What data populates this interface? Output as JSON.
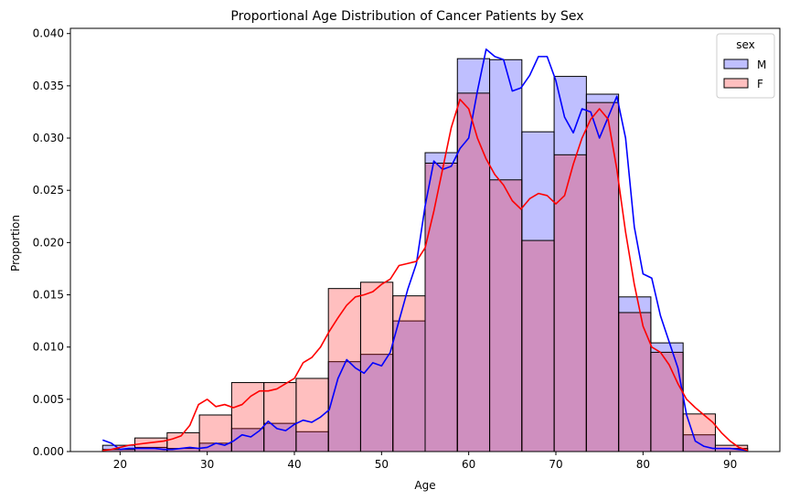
{
  "chart_data": {
    "type": "histogram",
    "title": "Proportional Age Distribution of Cancer Patients by Sex",
    "xlabel": "Age",
    "ylabel": "Proportion",
    "xlim": [
      14.3,
      95.7
    ],
    "ylim": [
      0,
      0.0405
    ],
    "xticks": [
      20,
      30,
      40,
      50,
      60,
      70,
      80,
      90
    ],
    "yticks": [
      0.0,
      0.005,
      0.01,
      0.015,
      0.02,
      0.025,
      0.03,
      0.035,
      0.04
    ],
    "ytick_labels": [
      "0.000",
      "0.005",
      "0.010",
      "0.015",
      "0.020",
      "0.025",
      "0.030",
      "0.035",
      "0.040"
    ],
    "bin_edges": [
      18,
      21.7,
      25.4,
      29.1,
      32.8,
      36.5,
      40.2,
      43.9,
      47.6,
      51.3,
      55.0,
      58.7,
      62.4,
      66.1,
      69.8,
      73.5,
      77.2,
      80.9,
      84.6,
      88.3,
      92.0
    ],
    "legend": {
      "title": "sex",
      "position": "top-right"
    },
    "series": [
      {
        "name": "M",
        "bar_color": "#0000ff",
        "bar_alpha": 0.25,
        "line_color": "#0000ff",
        "values": [
          0.0006,
          0.0004,
          0.0003,
          0.0008,
          0.0022,
          0.0027,
          0.0019,
          0.0086,
          0.0093,
          0.0125,
          0.0286,
          0.0376,
          0.0375,
          0.0306,
          0.0359,
          0.0342,
          0.0148,
          0.0104,
          0.0016,
          0.0003
        ],
        "kde": [
          [
            18,
            0.0011
          ],
          [
            19,
            0.0008
          ],
          [
            20,
            0.0002
          ],
          [
            21,
            0.0003
          ],
          [
            22,
            0.0003
          ],
          [
            23,
            0.0003
          ],
          [
            24,
            0.0003
          ],
          [
            25,
            0.0002
          ],
          [
            26,
            0.0002
          ],
          [
            27,
            0.0003
          ],
          [
            28,
            0.0004
          ],
          [
            29,
            0.0003
          ],
          [
            30,
            0.0004
          ],
          [
            31,
            0.0008
          ],
          [
            32,
            0.0006
          ],
          [
            33,
            0.001
          ],
          [
            34,
            0.0016
          ],
          [
            35,
            0.0014
          ],
          [
            36,
            0.002
          ],
          [
            37,
            0.0029
          ],
          [
            38,
            0.0022
          ],
          [
            39,
            0.002
          ],
          [
            40,
            0.0026
          ],
          [
            41,
            0.003
          ],
          [
            42,
            0.0028
          ],
          [
            43,
            0.0033
          ],
          [
            44,
            0.004
          ],
          [
            45,
            0.007
          ],
          [
            46,
            0.0088
          ],
          [
            47,
            0.008
          ],
          [
            48,
            0.0075
          ],
          [
            49,
            0.0085
          ],
          [
            50,
            0.0082
          ],
          [
            51,
            0.0095
          ],
          [
            52,
            0.0125
          ],
          [
            53,
            0.0155
          ],
          [
            54,
            0.018
          ],
          [
            55,
            0.0235
          ],
          [
            56,
            0.0278
          ],
          [
            57,
            0.027
          ],
          [
            58,
            0.0273
          ],
          [
            59,
            0.029
          ],
          [
            60,
            0.03
          ],
          [
            61,
            0.0345
          ],
          [
            62,
            0.0385
          ],
          [
            63,
            0.0378
          ],
          [
            64,
            0.0375
          ],
          [
            65,
            0.0345
          ],
          [
            66,
            0.0348
          ],
          [
            67,
            0.036
          ],
          [
            68,
            0.0378
          ],
          [
            69,
            0.0378
          ],
          [
            70,
            0.0355
          ],
          [
            71,
            0.032
          ],
          [
            72,
            0.0305
          ],
          [
            73,
            0.0328
          ],
          [
            74,
            0.0325
          ],
          [
            75,
            0.03
          ],
          [
            76,
            0.032
          ],
          [
            77,
            0.034
          ],
          [
            78,
            0.03
          ],
          [
            79,
            0.0215
          ],
          [
            80,
            0.017
          ],
          [
            81,
            0.0166
          ],
          [
            82,
            0.013
          ],
          [
            83,
            0.0105
          ],
          [
            84,
            0.008
          ],
          [
            85,
            0.0035
          ],
          [
            86,
            0.001
          ],
          [
            87,
            0.0005
          ],
          [
            88,
            0.0003
          ],
          [
            89,
            0.0003
          ],
          [
            90,
            0.0003
          ],
          [
            91,
            0.0002
          ],
          [
            92,
            0.0001
          ]
        ]
      },
      {
        "name": "F",
        "bar_color": "#ff0000",
        "bar_alpha": 0.25,
        "line_color": "#ff0000",
        "values": [
          0.0002,
          0.0013,
          0.0018,
          0.0035,
          0.0066,
          0.0066,
          0.007,
          0.0156,
          0.0162,
          0.0149,
          0.0276,
          0.0343,
          0.026,
          0.0202,
          0.0284,
          0.0334,
          0.0133,
          0.0095,
          0.0036,
          0.0006
        ],
        "kde": [
          [
            18,
            0.0001
          ],
          [
            19,
            0.0002
          ],
          [
            20,
            0.0004
          ],
          [
            21,
            0.0006
          ],
          [
            22,
            0.0007
          ],
          [
            23,
            0.0008
          ],
          [
            24,
            0.0009
          ],
          [
            25,
            0.001
          ],
          [
            26,
            0.0012
          ],
          [
            27,
            0.0015
          ],
          [
            28,
            0.0025
          ],
          [
            29,
            0.0045
          ],
          [
            30,
            0.005
          ],
          [
            31,
            0.0043
          ],
          [
            32,
            0.0045
          ],
          [
            33,
            0.0042
          ],
          [
            34,
            0.0045
          ],
          [
            35,
            0.0053
          ],
          [
            36,
            0.0058
          ],
          [
            37,
            0.0058
          ],
          [
            38,
            0.006
          ],
          [
            39,
            0.0065
          ],
          [
            40,
            0.007
          ],
          [
            41,
            0.0085
          ],
          [
            42,
            0.009
          ],
          [
            43,
            0.01
          ],
          [
            44,
            0.0115
          ],
          [
            45,
            0.0128
          ],
          [
            46,
            0.014
          ],
          [
            47,
            0.0148
          ],
          [
            48,
            0.015
          ],
          [
            49,
            0.0153
          ],
          [
            50,
            0.016
          ],
          [
            51,
            0.0165
          ],
          [
            52,
            0.0178
          ],
          [
            53,
            0.018
          ],
          [
            54,
            0.0182
          ],
          [
            55,
            0.0195
          ],
          [
            56,
            0.023
          ],
          [
            57,
            0.027
          ],
          [
            58,
            0.031
          ],
          [
            59,
            0.0337
          ],
          [
            60,
            0.0328
          ],
          [
            61,
            0.03
          ],
          [
            62,
            0.028
          ],
          [
            63,
            0.0265
          ],
          [
            64,
            0.0255
          ],
          [
            65,
            0.024
          ],
          [
            66,
            0.0232
          ],
          [
            67,
            0.0242
          ],
          [
            68,
            0.0247
          ],
          [
            69,
            0.0245
          ],
          [
            70,
            0.0237
          ],
          [
            71,
            0.0245
          ],
          [
            72,
            0.0275
          ],
          [
            73,
            0.03
          ],
          [
            74,
            0.0318
          ],
          [
            75,
            0.0328
          ],
          [
            76,
            0.0318
          ],
          [
            77,
            0.027
          ],
          [
            78,
            0.021
          ],
          [
            79,
            0.016
          ],
          [
            80,
            0.012
          ],
          [
            81,
            0.01
          ],
          [
            82,
            0.0095
          ],
          [
            83,
            0.0083
          ],
          [
            84,
            0.0065
          ],
          [
            85,
            0.005
          ],
          [
            86,
            0.0042
          ],
          [
            87,
            0.0035
          ],
          [
            88,
            0.0028
          ],
          [
            89,
            0.0018
          ],
          [
            90,
            0.001
          ],
          [
            91,
            0.0004
          ],
          [
            92,
            0.0001
          ]
        ]
      }
    ]
  }
}
